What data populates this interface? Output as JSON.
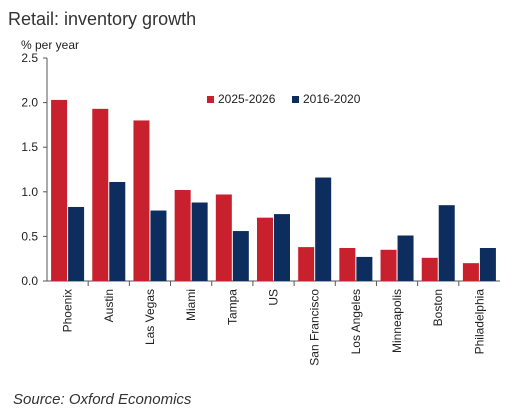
{
  "chart_data": {
    "type": "bar",
    "title": "Retail: inventory growth",
    "ylabel": "% per year",
    "xlabel": "",
    "ylim": [
      0,
      2.5
    ],
    "yticks": [
      "0.0",
      "0.5",
      "1.0",
      "1.5",
      "2.0",
      "2.5"
    ],
    "grid": false,
    "legend_position": "top-right",
    "categories": [
      "Phoenix",
      "Austin",
      "Las Vegas",
      "Miami",
      "Tampa",
      "US",
      "San Francisco",
      "Los Angeles",
      "Minneapolis",
      "Boston",
      "Philadelphia"
    ],
    "series": [
      {
        "name": "2025-2026",
        "color": "#c8202c",
        "values": [
          2.03,
          1.93,
          1.8,
          1.02,
          0.97,
          0.71,
          0.38,
          0.37,
          0.35,
          0.26,
          0.2
        ]
      },
      {
        "name": "2016-2020",
        "color": "#0d2d5e",
        "values": [
          0.83,
          1.11,
          0.79,
          0.88,
          0.56,
          0.75,
          1.16,
          0.27,
          0.51,
          0.85,
          0.37
        ]
      }
    ],
    "source": "Source: Oxford Economics"
  }
}
